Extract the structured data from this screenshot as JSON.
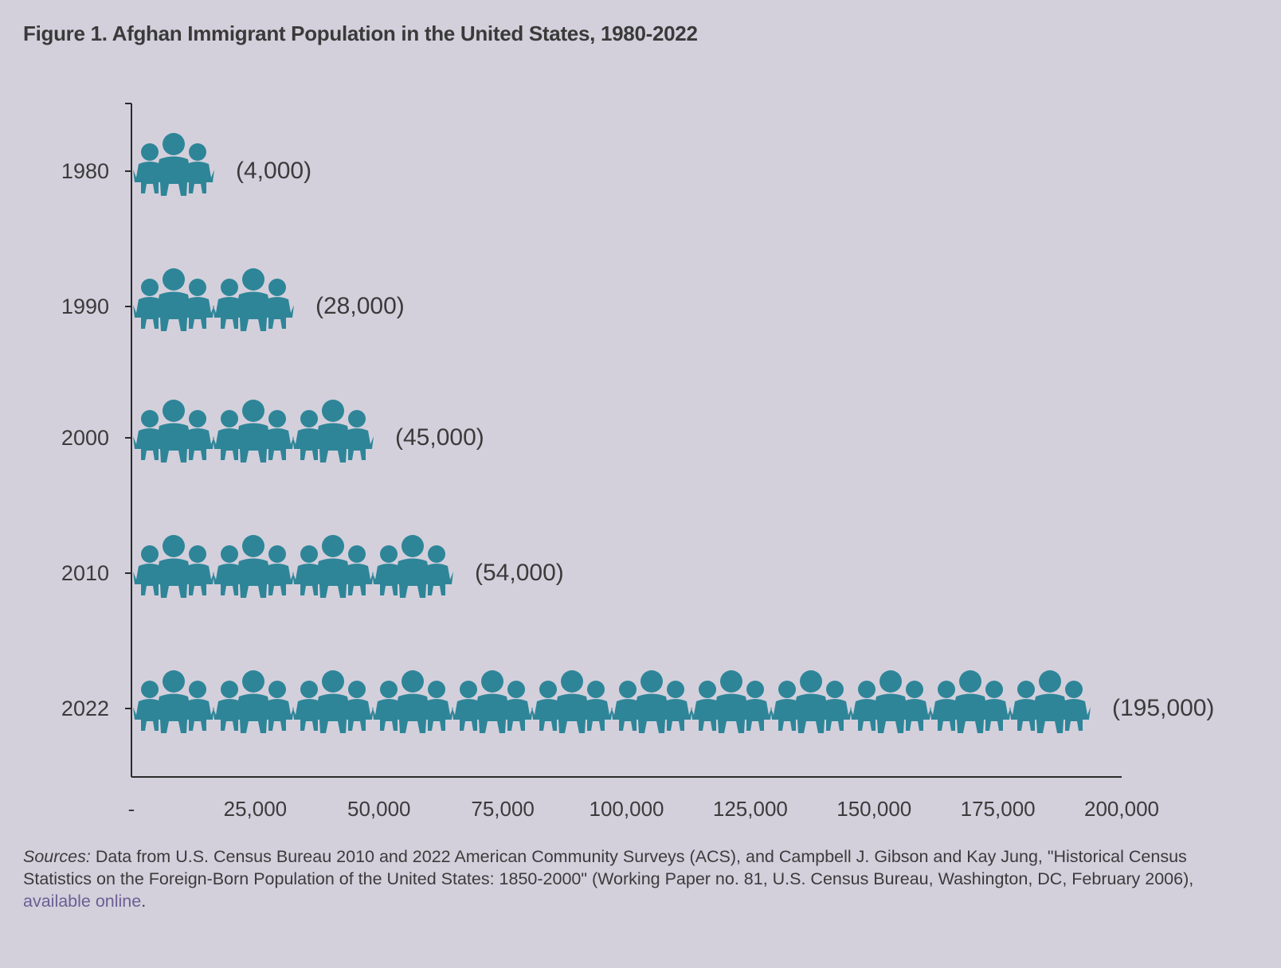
{
  "figure_title": "Figure 1. Afghan Immigrant Population in the United States, 1980-2022",
  "colors": {
    "background": "#d3d0dc",
    "icon_fill": "#2e8598",
    "axis": "#2b2b2b",
    "text": "#3b3b3b",
    "link": "#6b5f93"
  },
  "icon_name": "people-group-icon",
  "chart_data": {
    "type": "bar",
    "orientation": "horizontal",
    "mark": "pictograph-people-icons",
    "title": "Figure 1. Afghan Immigrant Population in the United States, 1980-2022",
    "categories": [
      "1980",
      "1990",
      "2000",
      "2010",
      "2022"
    ],
    "values": [
      4000,
      28000,
      45000,
      54000,
      195000
    ],
    "value_labels": [
      "(4,000)",
      "(28,000)",
      "(45,000)",
      "(54,000)",
      "(195,000)"
    ],
    "icon_groups": [
      1,
      2,
      3,
      4,
      12
    ],
    "xlim": [
      0,
      200000
    ],
    "xticks": [
      0,
      25000,
      50000,
      75000,
      100000,
      125000,
      150000,
      175000,
      200000
    ],
    "xtick_labels": [
      "-",
      "25,000",
      "50,000",
      "75,000",
      "100,000",
      "125,000",
      "150,000",
      "175,000",
      "200,000"
    ],
    "xlabel": "",
    "ylabel": "",
    "grid": false,
    "legend": "none"
  },
  "sources": {
    "lead": "Sources:",
    "body": " Data from U.S. Census Bureau 2010 and 2022 American Community Surveys (ACS), and Campbell J. Gibson and Kay Jung, \"Historical Census Statistics on the Foreign-Born Population of the United States: 1850-2000\" (Working Paper no. 81, U.S. Census Bureau, Washington, DC, February 2006), ",
    "link_text": "available online",
    "tail": "."
  }
}
